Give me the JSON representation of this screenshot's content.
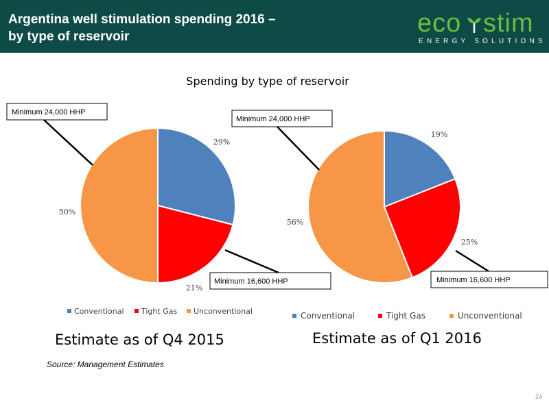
{
  "header": {
    "title_line1": "Argentina well stimulation spending 2016 –",
    "title_line2": "by type of reservoir",
    "logo_eco": "eco",
    "logo_stim": "stim",
    "logo_sub": "ENERGY SOLUTIONS"
  },
  "colors": {
    "header_bg": "#0e4a46",
    "logo_green": "#6bbf3e",
    "conventional": "#4f81bd",
    "tight_gas": "#ff0000",
    "unconventional": "#f79646"
  },
  "chart_data": [
    {
      "type": "pie",
      "title": "Spending by type of reservoir",
      "caption": "Estimate as of Q4 2015",
      "slices": [
        {
          "label": "Conventional",
          "value": 29,
          "value_label": "29%"
        },
        {
          "label": "Tight Gas",
          "value": 21,
          "value_label": "21%"
        },
        {
          "label": "Unconventional",
          "value": 50,
          "value_label": "50%"
        }
      ],
      "callouts": {
        "unconventional": "Minimum 24,000 HHP",
        "tight_gas": "Minimum 16,600 HHP"
      },
      "legend": [
        "Conventional",
        "Tight Gas",
        "Unconventional"
      ],
      "legend_position": "bottom"
    },
    {
      "type": "pie",
      "caption": "Estimate as of Q1 2016",
      "slices": [
        {
          "label": "Conventional",
          "value": 19,
          "value_label": "19%"
        },
        {
          "label": "Tight Gas",
          "value": 25,
          "value_label": "25%"
        },
        {
          "label": "Unconventional",
          "value": 56,
          "value_label": "56%"
        }
      ],
      "callouts": {
        "unconventional": "Minimum 24,000 HHP",
        "tight_gas": "Minimum 16,600 HHP"
      },
      "legend": [
        "Conventional",
        "Tight Gas",
        "Unconventional"
      ],
      "legend_position": "bottom"
    }
  ],
  "footer": {
    "source": "Source: Management Estimates",
    "page_number": "24"
  }
}
